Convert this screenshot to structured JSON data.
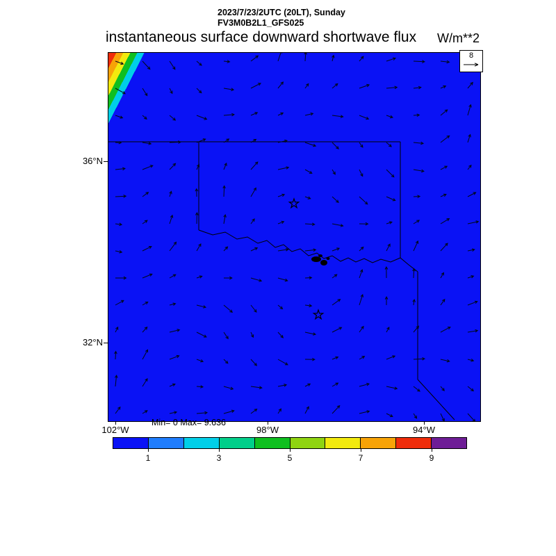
{
  "header": {
    "line1": "2023/7/23/2UTC (20LT), Sunday",
    "line2": "FV3M0B2L1_GFS025"
  },
  "title": {
    "text": "instantaneous surface downward shortwave flux",
    "units": "W/m**2"
  },
  "stats": {
    "text": "Min= 0 Max= 9.636"
  },
  "axes": {
    "lat": [
      "36°N",
      "32°N"
    ],
    "lon": [
      "102°W",
      "98°W",
      "94°W"
    ]
  },
  "ref_vector": {
    "label": "8"
  },
  "colorbar": {
    "tick_labels": [
      "1",
      "3",
      "5",
      "7",
      "9"
    ],
    "colors": [
      "#0a12f5",
      "#1f7dfd",
      "#00cfe8",
      "#00cf8a",
      "#0fbf1f",
      "#8fd411",
      "#f2ea0e",
      "#f7a307",
      "#ef2c0a",
      "#6e1d96"
    ],
    "min": 0,
    "max": 10
  },
  "map": {
    "fill": "#0a12f5",
    "border_color": "#000000",
    "markers": [
      {
        "symbol": "star",
        "x": 267,
        "y": 217
      },
      {
        "symbol": "star",
        "x": 302,
        "y": 377
      }
    ]
  },
  "wind": {
    "cols": 14,
    "rows": 14,
    "reference_value": 8,
    "arrow_color": "#000818",
    "description": "light variable wind vectors on regular grid over the whole map"
  },
  "chart_data": {
    "type": "heatmap",
    "title": "instantaneous surface downward shortwave flux",
    "units": "W/m**2",
    "datetime": "2023/7/23/2UTC (20LT), Sunday",
    "model": "FV3M0B2L1_GFS025",
    "min": 0,
    "max": 9.636,
    "levels": [
      1,
      2,
      3,
      4,
      5,
      6,
      7,
      8,
      9
    ],
    "palette": [
      "#0a12f5",
      "#1f7dfd",
      "#00cfe8",
      "#00cf8a",
      "#0fbf1f",
      "#8fd411",
      "#f2ea0e",
      "#f7a307",
      "#ef2c0a",
      "#6e1d96"
    ],
    "x_ticks": [
      "102°W",
      "98°W",
      "94°W"
    ],
    "y_ticks": [
      "36°N",
      "32°N"
    ],
    "region": "Oklahoma / north Texas with state borders and Red River",
    "field_description": "Flux is 0 (blue) over nearly the entire domain; a narrow rainbow band (red-orange-yellow-green-cyan) of nonzero flux up to 9.636 W/m**2 hugs the far northwest corner (evening terminator). Open star markers at Oklahoma City and Dallas; wind vector overlay with reference arrow of 8."
  }
}
